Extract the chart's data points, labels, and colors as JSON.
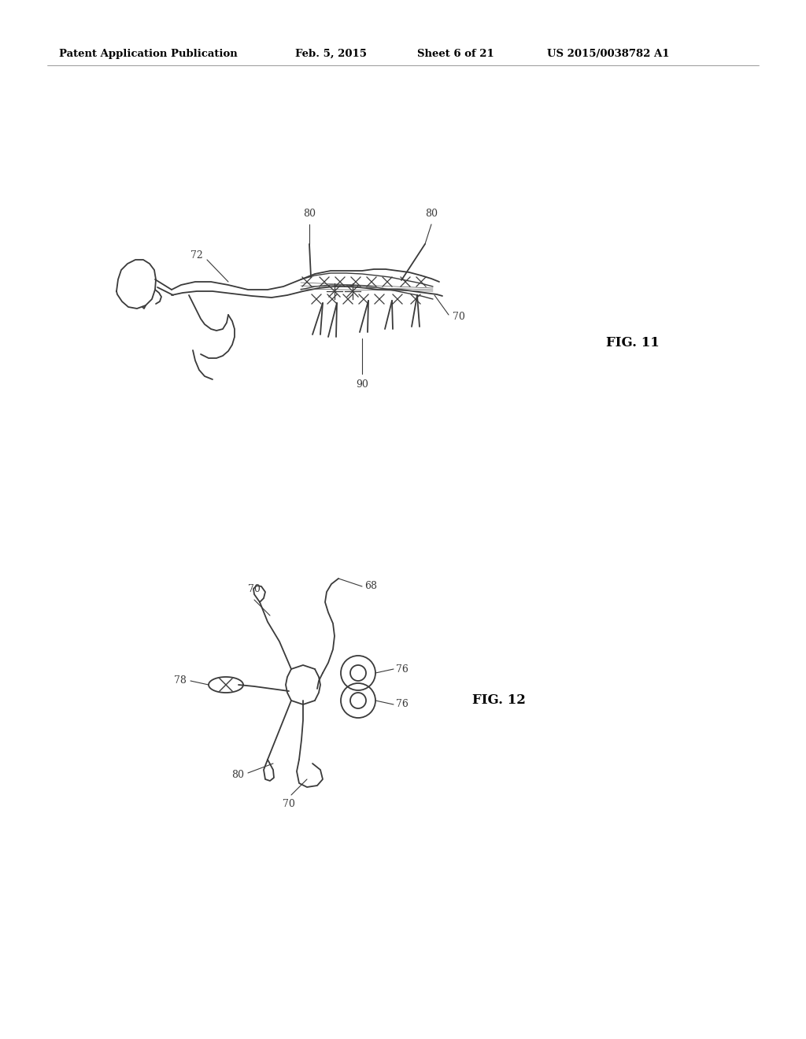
{
  "bg_color": "#ffffff",
  "header_text": "Patent Application Publication",
  "header_date": "Feb. 5, 2015",
  "header_sheet": "Sheet 6 of 21",
  "header_patent": "US 2015/0038782 A1",
  "fig11_label": "FIG. 11",
  "fig12_label": "FIG. 12",
  "line_color": "#3a3a3a",
  "line_width": 1.3
}
